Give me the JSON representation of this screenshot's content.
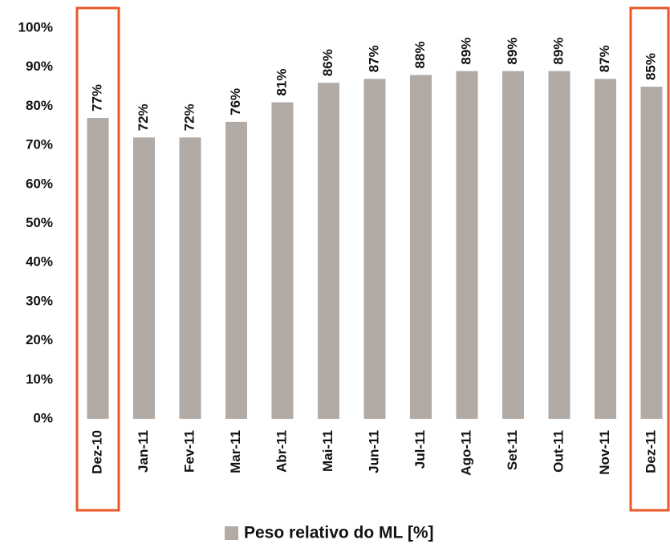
{
  "chart_data": {
    "type": "bar",
    "categories": [
      "Dez-10",
      "Jan-11",
      "Fev-11",
      "Mar-11",
      "Abr-11",
      "Mai-11",
      "Jun-11",
      "Jul-11",
      "Ago-11",
      "Set-11",
      "Out-11",
      "Nov-11",
      "Dez-11"
    ],
    "series": [
      {
        "name": "Peso relativo do ML [%]",
        "color": "#b2aaa4",
        "values": [
          77,
          72,
          72,
          76,
          81,
          86,
          87,
          88,
          89,
          89,
          89,
          87,
          85
        ],
        "value_labels": [
          "77%",
          "72%",
          "72%",
          "76%",
          "81%",
          "86%",
          "87%",
          "88%",
          "89%",
          "89%",
          "89%",
          "87%",
          "85%"
        ]
      }
    ],
    "ylim": [
      0,
      100
    ],
    "yticks": [
      {
        "value": 0,
        "label": "0%"
      },
      {
        "value": 10,
        "label": "10%"
      },
      {
        "value": 20,
        "label": "20%"
      },
      {
        "value": 30,
        "label": "30%"
      },
      {
        "value": 40,
        "label": "40%"
      },
      {
        "value": 50,
        "label": "50%"
      },
      {
        "value": 60,
        "label": "60%"
      },
      {
        "value": 70,
        "label": "70%"
      },
      {
        "value": 80,
        "label": "80%"
      },
      {
        "value": 90,
        "label": "90%"
      },
      {
        "value": 100,
        "label": "100%"
      }
    ],
    "grid": false,
    "legend": "bottom",
    "highlight": [
      0,
      12
    ],
    "highlight_color": "#e8572a"
  }
}
